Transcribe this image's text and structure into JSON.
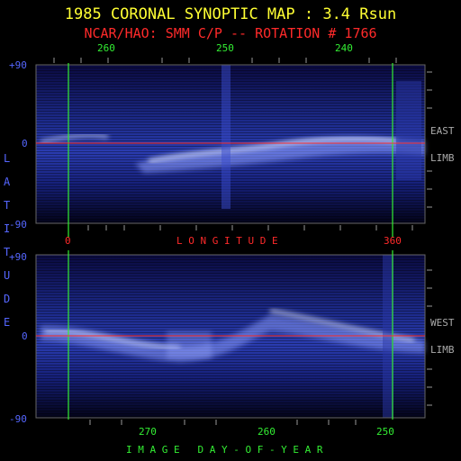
{
  "title": "1985 CORONAL SYNOPTIC MAP : 3.4 Rsun",
  "subtitle": "NCAR/HAO: SMM C/P -- ROTATION # 1766",
  "top_axis_ticks": [
    "260",
    "250",
    "240"
  ],
  "lat_ticks_top": [
    "+90",
    "0",
    "-90"
  ],
  "lat_ticks_bottom": [
    "+90",
    "0",
    "-90"
  ],
  "latitude_letters": [
    "L",
    "A",
    "T",
    "I",
    "T",
    "U",
    "D",
    "E"
  ],
  "longitude_label": "L O N G I T U D E",
  "longitude_ticks": [
    "0",
    "360"
  ],
  "east_label": [
    "EAST",
    "LIMB"
  ],
  "west_label": [
    "WEST",
    "LIMB"
  ],
  "bottom_axis_ticks": [
    "270",
    "260",
    "250"
  ],
  "bottom_axis_label": "I M A G E   D A Y - O F - Y E A R",
  "colors": {
    "title": "#ffff33",
    "subtitle": "#ff2a2a",
    "grid_green": "#33ee33",
    "equator_red": "#ff3333",
    "lat_blue": "#5566ff"
  }
}
